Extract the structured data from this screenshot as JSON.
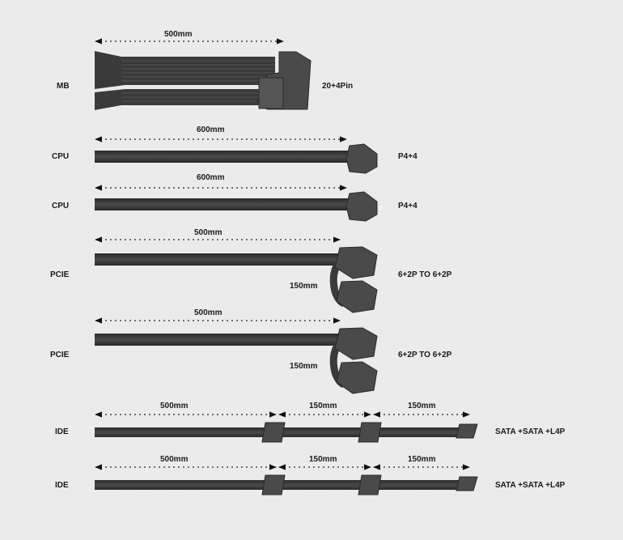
{
  "colors": {
    "background": "#ebebeb",
    "cable": "#3a3a3a",
    "connector": "#4a4a4a",
    "text": "#1a1a1a"
  },
  "cables": [
    {
      "type": "MB",
      "lengths": [
        "500mm"
      ],
      "connector": "20+4Pin"
    },
    {
      "type": "CPU",
      "lengths": [
        "600mm"
      ],
      "connector": "P4+4"
    },
    {
      "type": "CPU",
      "lengths": [
        "600mm"
      ],
      "connector": "P4+4"
    },
    {
      "type": "PCIE",
      "lengths": [
        "500mm",
        "150mm"
      ],
      "connector": "6+2P TO 6+2P"
    },
    {
      "type": "PCIE",
      "lengths": [
        "500mm",
        "150mm"
      ],
      "connector": "6+2P TO 6+2P"
    },
    {
      "type": "IDE",
      "lengths": [
        "500mm",
        "150mm",
        "150mm"
      ],
      "connector": "SATA +SATA +L4P"
    },
    {
      "type": "IDE",
      "lengths": [
        "500mm",
        "150mm",
        "150mm"
      ],
      "connector": "SATA +SATA +L4P"
    }
  ]
}
